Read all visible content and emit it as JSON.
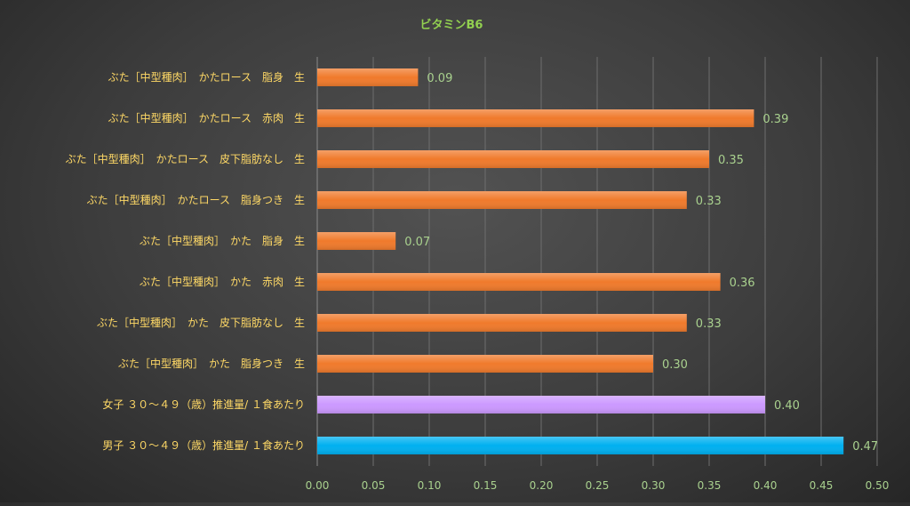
{
  "chart_data": {
    "type": "bar",
    "orientation": "horizontal",
    "title": "ビタミンB6",
    "xlabel": "",
    "ylabel": "",
    "xlim": [
      0,
      0.5
    ],
    "ticks": [
      "0.00",
      "0.05",
      "0.10",
      "0.15",
      "0.20",
      "0.25",
      "0.30",
      "0.35",
      "0.40",
      "0.45",
      "0.50"
    ],
    "grid": true,
    "legend": "none",
    "categories": [
      "ぶた［中型種肉］　かたロース　脂身　生",
      "ぶた［中型種肉］　かたロース　赤肉　生",
      "ぶた［中型種肉］　かたロース　皮下脂肪なし　生",
      "ぶた［中型種肉］　かたロース　脂身つき　生",
      "ぶた［中型種肉］　かた　脂身　生",
      "ぶた［中型種肉］　かた　赤肉　生",
      "ぶた［中型種肉］　かた　皮下脂肪なし　生",
      "ぶた［中型種肉］　かた　脂身つき　生",
      "女子 ３０～４９（歳）推進量/ １食あたり",
      "男子 ３０～４９（歳）推進量/ １食あたり"
    ],
    "values": [
      0.09,
      0.39,
      0.35,
      0.33,
      0.07,
      0.36,
      0.33,
      0.3,
      0.4,
      0.47
    ],
    "value_labels": [
      "0.09",
      "0.39",
      "0.35",
      "0.33",
      "0.07",
      "0.36",
      "0.33",
      "0.30",
      "0.40",
      "0.47"
    ],
    "colors": [
      "#f07a2c",
      "#f07a2c",
      "#f07a2c",
      "#f07a2c",
      "#f07a2c",
      "#f07a2c",
      "#f07a2c",
      "#f07a2c",
      "#cc99ff",
      "#00b0f0"
    ],
    "text_colors": {
      "title": "#92d050",
      "category": "#ffd966",
      "value": "#a9d18e",
      "tick": "#a9d18e",
      "grid": "#6e6e6e"
    }
  }
}
